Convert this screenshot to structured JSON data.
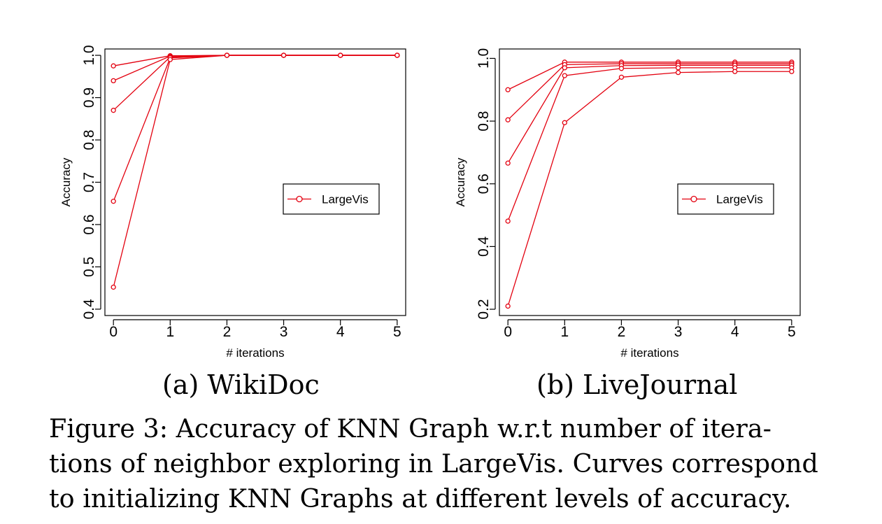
{
  "colors": {
    "series": "#e3000f",
    "axis": "#000000"
  },
  "chart_data": [
    {
      "type": "line",
      "subcaption": "(a) WikiDoc",
      "xlabel": "# iterations",
      "ylabel": "Accuracy",
      "x": [
        0,
        1,
        2,
        3,
        4,
        5
      ],
      "xlim": [
        -0.15,
        5.15
      ],
      "ylim": [
        0.385,
        1.015
      ],
      "xticks": [
        "0",
        "1",
        "2",
        "3",
        "4",
        "5"
      ],
      "yticks": [
        "0.4",
        "0.5",
        "0.6",
        "0.7",
        "0.8",
        "0.9",
        "1.0"
      ],
      "ytick_values": [
        0.4,
        0.5,
        0.6,
        0.7,
        0.8,
        0.9,
        1.0
      ],
      "legend": {
        "label": "LargeVis",
        "position": "right"
      },
      "series": [
        {
          "values": [
            0.975,
            0.999,
            1.0,
            1.0,
            1.0,
            1.0
          ]
        },
        {
          "values": [
            0.94,
            0.998,
            1.0,
            1.0,
            1.0,
            1.0
          ]
        },
        {
          "values": [
            0.87,
            0.996,
            1.0,
            1.0,
            1.0,
            1.0
          ]
        },
        {
          "values": [
            0.655,
            0.994,
            1.0,
            1.0,
            1.0,
            1.0
          ]
        },
        {
          "values": [
            0.452,
            0.99,
            1.0,
            1.0,
            1.0,
            1.0
          ]
        }
      ]
    },
    {
      "type": "line",
      "subcaption": "(b) LiveJournal",
      "xlabel": "# iterations",
      "ylabel": "Accuracy",
      "x": [
        0,
        1,
        2,
        3,
        4,
        5
      ],
      "xlim": [
        -0.15,
        5.15
      ],
      "ylim": [
        0.18,
        1.03
      ],
      "xticks": [
        "0",
        "1",
        "2",
        "3",
        "4",
        "5"
      ],
      "yticks": [
        "0.2",
        "0.4",
        "0.6",
        "0.8",
        "1.0"
      ],
      "ytick_values": [
        0.2,
        0.4,
        0.6,
        0.8,
        1.0
      ],
      "legend": {
        "label": "LargeVis",
        "position": "right"
      },
      "series": [
        {
          "values": [
            0.9,
            0.988,
            0.988,
            0.988,
            0.988,
            0.988
          ]
        },
        {
          "values": [
            0.804,
            0.98,
            0.983,
            0.983,
            0.983,
            0.983
          ]
        },
        {
          "values": [
            0.666,
            0.97,
            0.977,
            0.978,
            0.978,
            0.978
          ]
        },
        {
          "values": [
            0.481,
            0.945,
            0.968,
            0.97,
            0.97,
            0.97
          ]
        },
        {
          "values": [
            0.21,
            0.795,
            0.94,
            0.955,
            0.958,
            0.958
          ]
        }
      ]
    }
  ],
  "figure_caption": [
    "Figure 3:  Accuracy of KNN Graph w.r.t number of itera-",
    "tions of neighbor exploring in LargeVis. Curves correspond",
    "to initializing KNN Graphs at different levels of accuracy."
  ]
}
